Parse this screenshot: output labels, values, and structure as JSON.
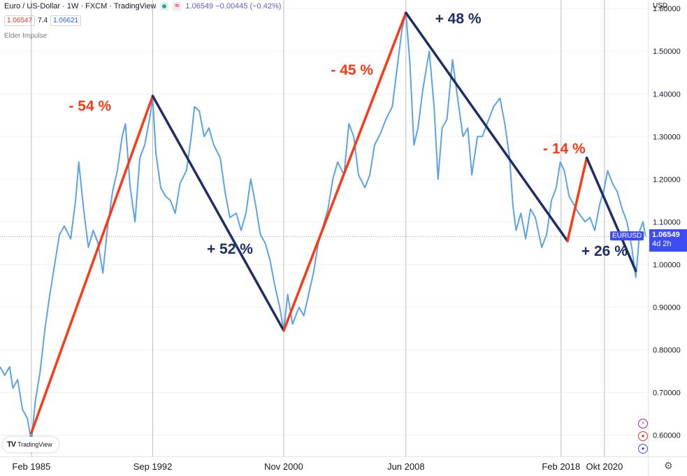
{
  "header": {
    "title": "Euro / US-Dollar · 1W · FXCM · TradingView",
    "quote": "1.06549 −0.00445 (−0.42%)",
    "price_left": "1.06547",
    "spread": "7.4",
    "price_right": "1.06621",
    "indicator": "Elder Impulse"
  },
  "axis_unit": "USD",
  "price_tag": {
    "symbol": "EURUSD",
    "price": "1.06549",
    "countdown": "4d 2h"
  },
  "logo_text": "TradingView",
  "colors": {
    "line": "#5ba3e6",
    "rise": "#ff3814",
    "fall": "#1f2e66",
    "tag": "#3d4df5"
  },
  "chart_data": {
    "type": "line",
    "ylim": [
      0.55,
      1.62
    ],
    "xlim": [
      1983.2,
      2023.5
    ],
    "y_ticks": [
      {
        "v": 0.6,
        "label": "0.60000"
      },
      {
        "v": 0.7,
        "label": "0.70000"
      },
      {
        "v": 0.8,
        "label": "0.80000"
      },
      {
        "v": 0.9,
        "label": "0.90000"
      },
      {
        "v": 1.0,
        "label": "1.00000"
      },
      {
        "v": 1.1,
        "label": "1.10000"
      },
      {
        "v": 1.2,
        "label": "1.20000"
      },
      {
        "v": 1.3,
        "label": "1.30000"
      },
      {
        "v": 1.4,
        "label": "1.40000"
      },
      {
        "v": 1.5,
        "label": "1.50000"
      },
      {
        "v": 1.6,
        "label": "1.60000"
      }
    ],
    "x_ticks": [
      {
        "v": 1985.15,
        "label": "Feb 1985"
      },
      {
        "v": 1992.7,
        "label": "Sep 1992"
      },
      {
        "v": 2000.85,
        "label": "Nov 2000"
      },
      {
        "v": 2008.45,
        "label": "Jun 2008"
      },
      {
        "v": 2018.1,
        "label": "Feb 2018"
      },
      {
        "v": 2020.8,
        "label": "Okt 2020"
      }
    ],
    "series": [
      {
        "values": [
          [
            1983.2,
            0.76
          ],
          [
            1983.5,
            0.74
          ],
          [
            1983.8,
            0.76
          ],
          [
            1984.0,
            0.71
          ],
          [
            1984.3,
            0.73
          ],
          [
            1984.6,
            0.66
          ],
          [
            1984.9,
            0.64
          ],
          [
            1985.15,
            0.585
          ],
          [
            1985.4,
            0.68
          ],
          [
            1985.7,
            0.75
          ],
          [
            1986.0,
            0.85
          ],
          [
            1986.3,
            0.93
          ],
          [
            1986.6,
            1.0
          ],
          [
            1986.9,
            1.07
          ],
          [
            1987.2,
            1.09
          ],
          [
            1987.6,
            1.06
          ],
          [
            1987.9,
            1.15
          ],
          [
            1988.1,
            1.24
          ],
          [
            1988.4,
            1.13
          ],
          [
            1988.7,
            1.04
          ],
          [
            1989.0,
            1.08
          ],
          [
            1989.3,
            1.05
          ],
          [
            1989.6,
            0.98
          ],
          [
            1989.9,
            1.09
          ],
          [
            1990.2,
            1.17
          ],
          [
            1990.5,
            1.22
          ],
          [
            1990.8,
            1.3
          ],
          [
            1991.0,
            1.33
          ],
          [
            1991.3,
            1.18
          ],
          [
            1991.6,
            1.1
          ],
          [
            1991.9,
            1.25
          ],
          [
            1992.2,
            1.28
          ],
          [
            1992.5,
            1.34
          ],
          [
            1992.7,
            1.39
          ],
          [
            1992.9,
            1.26
          ],
          [
            1993.2,
            1.18
          ],
          [
            1993.5,
            1.16
          ],
          [
            1993.8,
            1.15
          ],
          [
            1994.1,
            1.12
          ],
          [
            1994.4,
            1.19
          ],
          [
            1994.8,
            1.22
          ],
          [
            1995.1,
            1.3
          ],
          [
            1995.3,
            1.37
          ],
          [
            1995.6,
            1.36
          ],
          [
            1995.9,
            1.3
          ],
          [
            1996.2,
            1.32
          ],
          [
            1996.5,
            1.28
          ],
          [
            1996.9,
            1.25
          ],
          [
            1997.2,
            1.17
          ],
          [
            1997.5,
            1.11
          ],
          [
            1997.9,
            1.12
          ],
          [
            1998.2,
            1.08
          ],
          [
            1998.5,
            1.12
          ],
          [
            1998.8,
            1.2
          ],
          [
            1999.1,
            1.14
          ],
          [
            1999.4,
            1.07
          ],
          [
            1999.7,
            1.05
          ],
          [
            2000.0,
            1.01
          ],
          [
            2000.3,
            0.95
          ],
          [
            2000.6,
            0.9
          ],
          [
            2000.85,
            0.845
          ],
          [
            2001.1,
            0.93
          ],
          [
            2001.4,
            0.86
          ],
          [
            2001.8,
            0.9
          ],
          [
            2002.1,
            0.88
          ],
          [
            2002.4,
            0.93
          ],
          [
            2002.7,
            0.98
          ],
          [
            2003.0,
            1.05
          ],
          [
            2003.3,
            1.09
          ],
          [
            2003.6,
            1.13
          ],
          [
            2003.9,
            1.2
          ],
          [
            2004.2,
            1.24
          ],
          [
            2004.6,
            1.21
          ],
          [
            2004.9,
            1.33
          ],
          [
            2005.2,
            1.3
          ],
          [
            2005.5,
            1.21
          ],
          [
            2005.9,
            1.18
          ],
          [
            2006.2,
            1.21
          ],
          [
            2006.5,
            1.28
          ],
          [
            2006.9,
            1.31
          ],
          [
            2007.2,
            1.34
          ],
          [
            2007.6,
            1.37
          ],
          [
            2007.9,
            1.46
          ],
          [
            2008.2,
            1.55
          ],
          [
            2008.45,
            1.59
          ],
          [
            2008.7,
            1.47
          ],
          [
            2008.95,
            1.28
          ],
          [
            2009.2,
            1.32
          ],
          [
            2009.5,
            1.41
          ],
          [
            2009.9,
            1.5
          ],
          [
            2010.2,
            1.37
          ],
          [
            2010.45,
            1.2
          ],
          [
            2010.7,
            1.32
          ],
          [
            2011.0,
            1.34
          ],
          [
            2011.35,
            1.48
          ],
          [
            2011.7,
            1.38
          ],
          [
            2012.0,
            1.3
          ],
          [
            2012.3,
            1.32
          ],
          [
            2012.55,
            1.21
          ],
          [
            2012.9,
            1.3
          ],
          [
            2013.2,
            1.3
          ],
          [
            2013.5,
            1.33
          ],
          [
            2013.9,
            1.37
          ],
          [
            2014.3,
            1.39
          ],
          [
            2014.6,
            1.33
          ],
          [
            2014.9,
            1.25
          ],
          [
            2015.1,
            1.14
          ],
          [
            2015.3,
            1.08
          ],
          [
            2015.6,
            1.12
          ],
          [
            2015.9,
            1.06
          ],
          [
            2016.2,
            1.13
          ],
          [
            2016.5,
            1.11
          ],
          [
            2016.9,
            1.04
          ],
          [
            2017.2,
            1.07
          ],
          [
            2017.5,
            1.15
          ],
          [
            2017.8,
            1.18
          ],
          [
            2018.05,
            1.24
          ],
          [
            2018.3,
            1.22
          ],
          [
            2018.6,
            1.16
          ],
          [
            2018.9,
            1.14
          ],
          [
            2019.2,
            1.12
          ],
          [
            2019.6,
            1.1
          ],
          [
            2019.9,
            1.11
          ],
          [
            2020.2,
            1.08
          ],
          [
            2020.5,
            1.14
          ],
          [
            2020.8,
            1.18
          ],
          [
            2021.0,
            1.22
          ],
          [
            2021.3,
            1.19
          ],
          [
            2021.6,
            1.17
          ],
          [
            2021.9,
            1.13
          ],
          [
            2022.2,
            1.1
          ],
          [
            2022.5,
            1.04
          ],
          [
            2022.75,
            0.97
          ],
          [
            2023.0,
            1.08
          ],
          [
            2023.2,
            1.1
          ],
          [
            2023.35,
            1.066
          ]
        ]
      }
    ],
    "trend_lines": [
      {
        "from": [
          1985.15,
          0.605
        ],
        "to": [
          1992.7,
          1.395
        ],
        "dir": "rise"
      },
      {
        "from": [
          1992.7,
          1.395
        ],
        "to": [
          2000.85,
          0.845
        ],
        "dir": "fall"
      },
      {
        "from": [
          2000.85,
          0.845
        ],
        "to": [
          2008.45,
          1.59
        ],
        "dir": "rise"
      },
      {
        "from": [
          2008.45,
          1.59
        ],
        "to": [
          2018.5,
          1.055
        ],
        "dir": "fall"
      },
      {
        "from": [
          2018.5,
          1.055
        ],
        "to": [
          2019.7,
          1.25
        ],
        "dir": "rise"
      },
      {
        "from": [
          2019.7,
          1.25
        ],
        "to": [
          2022.75,
          0.985
        ],
        "dir": "fall"
      }
    ],
    "annotations": [
      {
        "text": "- 54 %",
        "x": 1988.8,
        "y": 1.36,
        "dir": "rise"
      },
      {
        "text": "+ 52 %",
        "x": 1997.5,
        "y": 1.025,
        "dir": "fall"
      },
      {
        "text": "- 45 %",
        "x": 2005.1,
        "y": 1.445,
        "dir": "rise"
      },
      {
        "text": "+ 48 %",
        "x": 2011.7,
        "y": 1.565,
        "dir": "fall"
      },
      {
        "text": "- 14 %",
        "x": 2018.3,
        "y": 1.26,
        "dir": "rise"
      },
      {
        "text": "+ 26 %",
        "x": 2020.8,
        "y": 1.02,
        "dir": "fall"
      }
    ]
  }
}
